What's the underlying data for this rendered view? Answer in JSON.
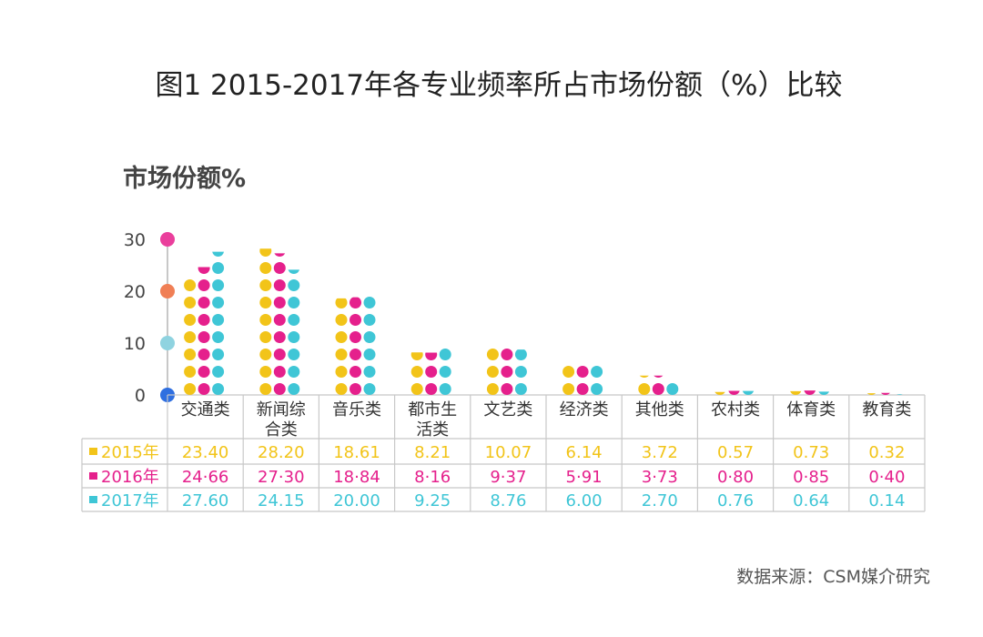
{
  "title": "图1  2015-2017年各专业频率所占市场份额（%）比较",
  "unit_label": "市场份额%",
  "source": "数据来源：CSM媒介研究",
  "colors": {
    "2015": "#f2c419",
    "2016": "#e5208c",
    "2017": "#3fc6d6",
    "axis": "#b5b5b5",
    "grid": "#c8c8c8",
    "axis_dots": [
      "#2f6fe0",
      "#8fd3e0",
      "#f07f55",
      "#ea3f9c"
    ]
  },
  "chart_data": {
    "type": "bar",
    "title": "图1  2015-2017年各专业频率所占市场份额（%）比较",
    "ylabel": "市场份额%",
    "ylim": [
      0,
      30
    ],
    "yticks": [
      "0",
      "10",
      "20",
      "30"
    ],
    "categories": [
      [
        "交通类"
      ],
      [
        "新闻综",
        "合类"
      ],
      [
        "音乐类"
      ],
      [
        "都市生",
        "活类"
      ],
      [
        "文艺类"
      ],
      [
        "经济类"
      ],
      [
        "其他类"
      ],
      [
        "农村类"
      ],
      [
        "体育类"
      ],
      [
        "教育类"
      ]
    ],
    "series": [
      {
        "name": "2015年",
        "values": [
          23.4,
          28.2,
          18.61,
          8.21,
          10.07,
          6.14,
          3.72,
          0.57,
          0.73,
          0.32
        ],
        "labels": [
          "23.40",
          "28.20",
          "18.61",
          "8.21",
          "10.07",
          "6.14",
          "3.72",
          "0.57",
          "0.73",
          "0.32"
        ]
      },
      {
        "name": "2016年",
        "values": [
          24.66,
          27.3,
          18.84,
          8.16,
          9.37,
          5.91,
          3.73,
          0.8,
          0.85,
          0.4
        ],
        "labels": [
          "24·66",
          "27·30",
          "18·84",
          "8·16",
          "9·37",
          "5·91",
          "3·73",
          "0·80",
          "0·85",
          "0·40"
        ]
      },
      {
        "name": "2017年",
        "values": [
          27.6,
          24.15,
          20.0,
          9.25,
          8.76,
          6.0,
          2.7,
          0.76,
          0.64,
          0.14
        ],
        "labels": [
          "27.60",
          "24.15",
          "20.00",
          "9.25",
          "8.76",
          "6.00",
          "2.70",
          "0.76",
          "0.64",
          "0.14"
        ]
      }
    ]
  }
}
